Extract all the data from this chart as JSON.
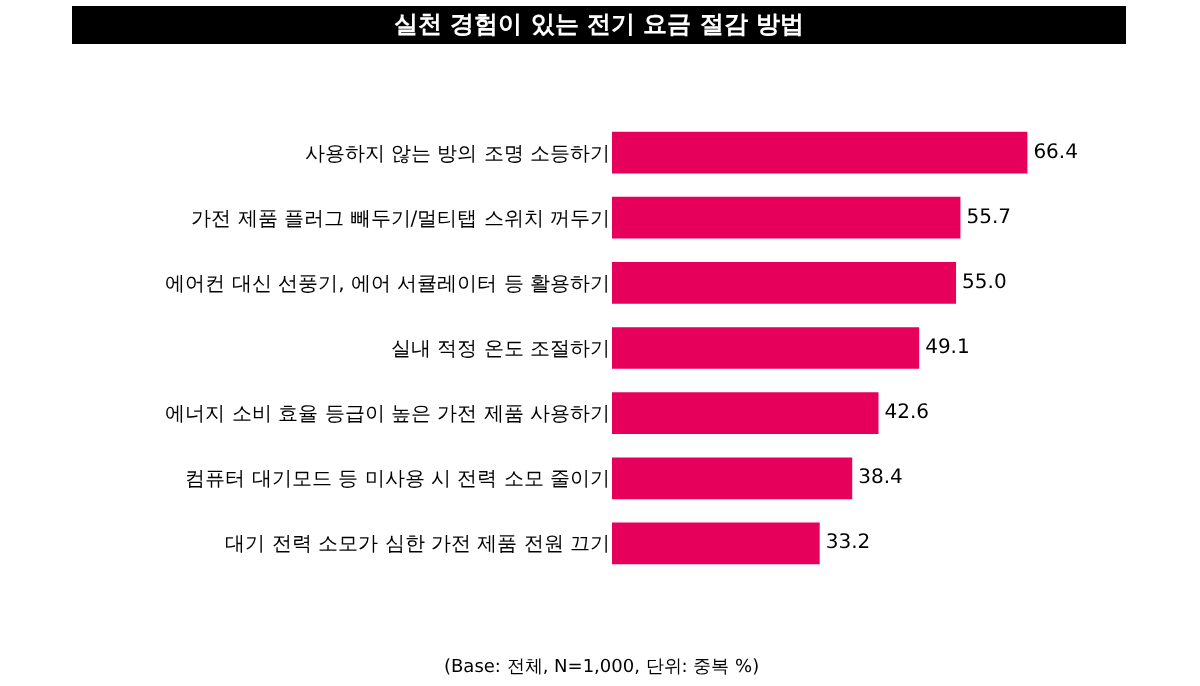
{
  "chart_data": {
    "type": "bar",
    "orientation": "horizontal",
    "title": "실천 경험이 있는 전기 요금 절감 방법",
    "categories": [
      "사용하지 않는 방의 조명 소등하기",
      "가전 제품 플러그 빼두기/멀티탭 스위치 꺼두기",
      "에어컨 대신 선풍기, 에어 서큘레이터 등 활용하기",
      "실내 적정 온도 조절하기",
      "에너지 소비 효율 등급이 높은 가전 제품 사용하기",
      "컴퓨터 대기모드 등 미사용 시 전력 소모 줄이기",
      "대기 전력 소모가 심한 가전 제품 전원 끄기"
    ],
    "values": [
      66.4,
      55.7,
      55.0,
      49.1,
      42.6,
      38.4,
      33.2
    ],
    "value_labels": [
      "66.4",
      "55.7",
      "55.0",
      "49.1",
      "42.6",
      "38.4",
      "33.2"
    ],
    "color": "#e6005c",
    "grid": false,
    "annotations": [
      "(Base: 전체, N=1,000, 단위: 중복 %)"
    ]
  }
}
